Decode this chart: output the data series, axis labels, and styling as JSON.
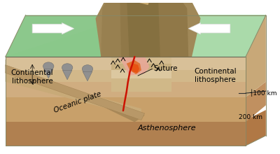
{
  "labels": {
    "continental_left": "Continental\nlithosphere",
    "continental_right": "Continental\nlithosphere",
    "oceanic_plate": "Oceanic plate",
    "asthenosphere": "Asthenosphere",
    "suture": "Suture",
    "depth_100": "┤100 km",
    "depth_200": "200 km"
  },
  "colors": {
    "white": "#ffffff",
    "green_top": "#8cc88c",
    "green_mid": "#9ed09e",
    "green_dark": "#70a870",
    "lith_top": "#d8c8a8",
    "lith_mid": "#cfc0a0",
    "lith_bot": "#c4aa88",
    "asth_top": "#c8a878",
    "asth_bot": "#b89060",
    "asth_dark": "#a07848",
    "oceanic_top": "#c8b090",
    "oceanic_band": "#b89870",
    "oceanic_dark": "#a88858",
    "mountain_base": "#c0a878",
    "mountain_dark": "#988060",
    "mountain_light": "#d8c090",
    "suture_red": "#cc1100",
    "magma_orange": "#e06820",
    "magma_dk": "#c04010",
    "magma_pink": "#e8a898",
    "wavy_tan": "#d8c0a0",
    "wavy_dark": "#b8a080",
    "gray_blob": "#909090",
    "gray_blob_dark": "#787878",
    "outline": "#887755",
    "text_color": "#111111"
  },
  "fig_width": 4.0,
  "fig_height": 2.2,
  "dpi": 100
}
